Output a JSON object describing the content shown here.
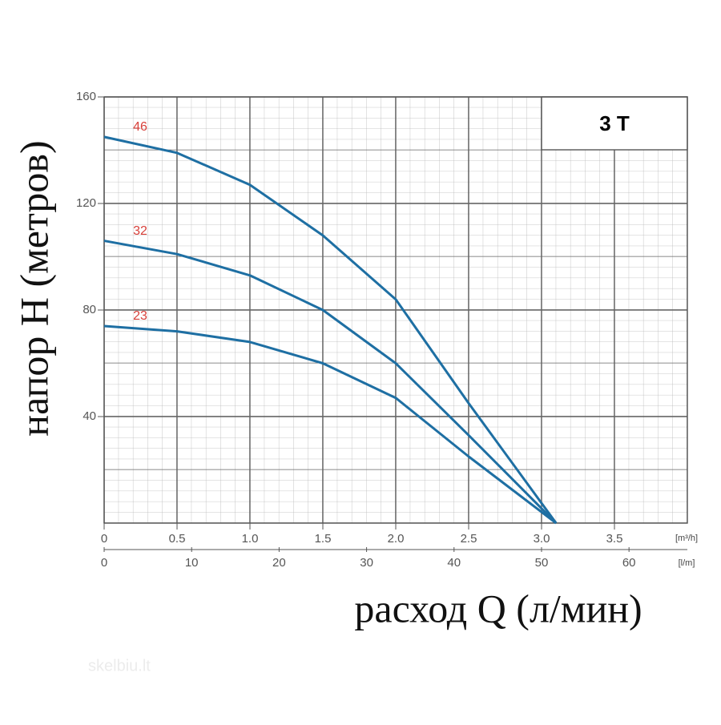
{
  "chart_data": {
    "type": "line",
    "title": "3 T",
    "xlabel": "расход Q (л/мин)",
    "ylabel": "напор H (метров)",
    "x_unit": "[m³/h]",
    "x2_unit": "[l/m]",
    "watermark": "skelbiu.lt",
    "x": [
      0,
      0.5,
      1,
      1.5,
      2,
      2.5,
      3.1
    ],
    "xlim": [
      0,
      4
    ],
    "xticks": [
      0,
      0.5,
      {
        "value": 1,
        "label": "1.0"
      },
      1.5,
      {
        "value": 2,
        "label": "2.0"
      },
      2.5,
      {
        "value": 3,
        "label": "3.0"
      },
      3.5
    ],
    "x2lim": [
      0,
      66.67
    ],
    "x2ticks": [
      0,
      10,
      20,
      30,
      40,
      50,
      60
    ],
    "ylim": [
      0,
      160
    ],
    "yticks": [
      40,
      80,
      120,
      160
    ],
    "grid": true,
    "label_color": "#d8403a",
    "series": [
      {
        "name": "46",
        "color": "#1e6fa3",
        "values": [
          145,
          139,
          127,
          108,
          84,
          45,
          0
        ]
      },
      {
        "name": "32",
        "color": "#1e6fa3",
        "values": [
          106,
          101,
          93,
          80,
          60,
          33,
          0
        ]
      },
      {
        "name": "23",
        "color": "#1e6fa3",
        "values": [
          74,
          72,
          68,
          60,
          47,
          25,
          0
        ]
      }
    ]
  }
}
